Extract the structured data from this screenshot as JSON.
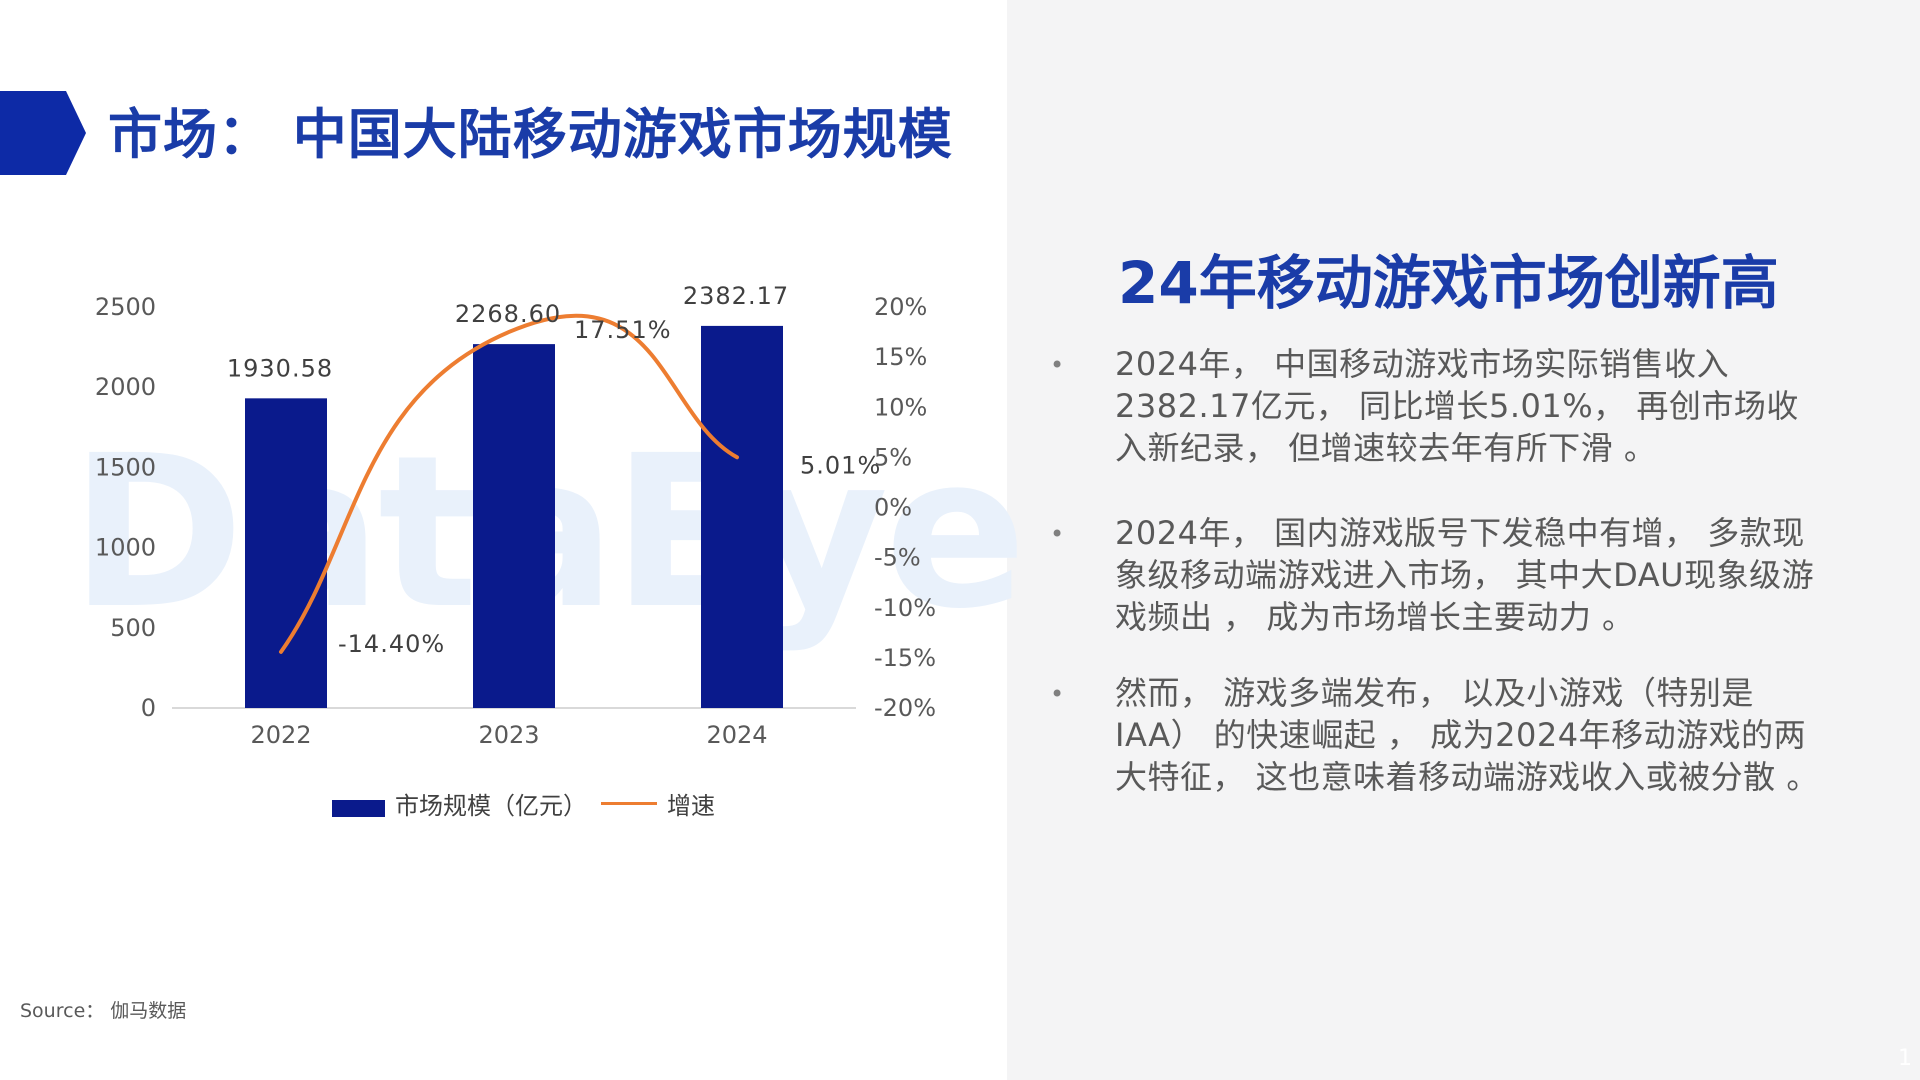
{
  "page": {
    "title": "市场： 中国大陆移动游戏市场规模",
    "watermark": "DataEye",
    "source": "Source： 伽马数据",
    "page_number": "1"
  },
  "colors": {
    "title_blue": "#1a3ca8",
    "bar_blue": "#0a1a8c",
    "line_orange": "#ed7d31",
    "panel_gray": "#f4f4f5"
  },
  "right": {
    "headline": "24年移动游戏市场创新高",
    "bullets": [
      {
        "marker": "•",
        "text": " 2024年， 中国移动游戏市场实际销售收入2382.17亿元， 同比增长5.01%， 再创市场收入新纪录， 但增速较去年有所下滑 。"
      },
      {
        "marker": "•",
        "text": " 2024年， 国内游戏版号下发稳中有增， 多款现象级移动端游戏进入市场， 其中大DAU现象级游戏频出 ， 成为市场增长主要动力 。"
      },
      {
        "marker": "•",
        "text": " 然而， 游戏多端发布， 以及小游戏（特别是IAA） 的快速崛起 ， 成为2024年移动游戏的两大特征， 这也意味着移动端游戏收入或被分散 。"
      }
    ]
  },
  "chart_data": {
    "type": "bar",
    "categories": [
      "2022",
      "2023",
      "2024"
    ],
    "series": [
      {
        "name": "市场规模（亿元）",
        "type": "bar",
        "axis": "left",
        "values": [
          1930.58,
          2268.6,
          2382.17
        ],
        "labels": [
          "1930.58",
          "2268.60",
          "2382.17"
        ]
      },
      {
        "name": "增速",
        "type": "line",
        "axis": "right",
        "smooth": true,
        "values": [
          -14.4,
          17.51,
          5.01
        ],
        "labels": [
          "-14.40%",
          "17.51%",
          "5.01%"
        ]
      }
    ],
    "y_left": {
      "ylim": [
        0,
        2500
      ],
      "ticks": [
        0,
        500,
        1000,
        1500,
        2000,
        2500
      ],
      "tick_labels": [
        "0",
        "500",
        "1000",
        "1500",
        "2000",
        "2500"
      ]
    },
    "y_right": {
      "ylim": [
        -20,
        20
      ],
      "ticks": [
        -20,
        -15,
        -10,
        -5,
        0,
        5,
        10,
        15,
        20
      ],
      "tick_labels": [
        "-20%",
        "-15%",
        "-10%",
        "-5%",
        "0%",
        "5%",
        "10%",
        "15%",
        "20%"
      ]
    },
    "grid": false,
    "legend": "bottom"
  }
}
